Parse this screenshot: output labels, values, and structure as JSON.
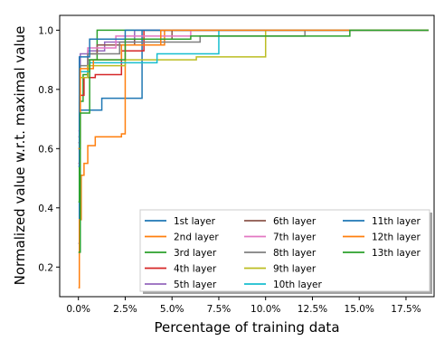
{
  "chart_data": {
    "type": "line",
    "title": "",
    "xlabel": "Percentage of training data",
    "ylabel": "Normalized value w.r.t. maximal value",
    "xlim": [
      -1.0,
      19.0
    ],
    "ylim": [
      0.1,
      1.05
    ],
    "xticks": [
      0.0,
      2.5,
      5.0,
      7.5,
      10.0,
      12.5,
      15.0,
      17.5
    ],
    "xtick_labels": [
      "0.0%",
      "2.5%",
      "5.0%",
      "7.5%",
      "10.0%",
      "12.5%",
      "15.0%",
      "17.5%"
    ],
    "yticks": [
      0.2,
      0.4,
      0.6,
      0.8,
      1.0
    ],
    "ytick_labels": [
      "0.2",
      "0.4",
      "0.6",
      "0.8",
      "1.0"
    ],
    "grid": false,
    "legend": {
      "placement": "lower-right",
      "columns": 3
    },
    "series": [
      {
        "name": "1st layer",
        "color": "#1f77b4",
        "x": [
          0.0,
          0.05,
          0.05,
          0.35,
          0.35,
          1.25,
          1.25,
          3.4,
          3.4,
          18.7
        ],
        "y": [
          0.28,
          0.28,
          0.73,
          0.73,
          0.73,
          0.73,
          0.77,
          0.77,
          1.0,
          1.0
        ]
      },
      {
        "name": "2nd layer",
        "color": "#ff7f0e",
        "x": [
          0.0,
          0.05,
          0.05,
          0.15,
          0.15,
          0.3,
          0.3,
          0.5,
          0.5,
          0.9,
          0.9,
          2.3,
          2.3,
          2.5,
          2.5,
          4.6,
          4.6,
          18.7
        ],
        "y": [
          0.13,
          0.13,
          0.36,
          0.36,
          0.51,
          0.51,
          0.55,
          0.55,
          0.61,
          0.61,
          0.64,
          0.64,
          0.65,
          0.65,
          0.95,
          0.95,
          1.0,
          1.0
        ]
      },
      {
        "name": "3rd layer",
        "color": "#2ca02c",
        "x": [
          0.0,
          0.05,
          0.05,
          0.25,
          0.25,
          0.5,
          0.5,
          1.0,
          1.0,
          18.7
        ],
        "y": [
          0.42,
          0.42,
          0.76,
          0.76,
          0.85,
          0.85,
          0.9,
          0.9,
          1.0,
          1.0
        ]
      },
      {
        "name": "4th layer",
        "color": "#d62728",
        "x": [
          0.0,
          0.05,
          0.05,
          0.3,
          0.3,
          0.9,
          0.9,
          2.3,
          2.3,
          3.5,
          3.5,
          18.7
        ],
        "y": [
          0.55,
          0.55,
          0.78,
          0.78,
          0.84,
          0.84,
          0.85,
          0.85,
          0.93,
          0.93,
          1.0,
          1.0
        ]
      },
      {
        "name": "5th layer",
        "color": "#9467bd",
        "x": [
          0.0,
          0.1,
          0.1,
          0.5,
          0.5,
          1.4,
          1.4,
          3.0,
          3.0,
          18.7
        ],
        "y": [
          0.6,
          0.6,
          0.92,
          0.92,
          0.93,
          0.93,
          0.96,
          0.96,
          1.0,
          1.0
        ]
      },
      {
        "name": "6th layer",
        "color": "#8c564b",
        "x": [
          0.0,
          0.1,
          0.1,
          0.5,
          0.5,
          1.0,
          1.0,
          3.0,
          3.0,
          5.0,
          5.0,
          18.7
        ],
        "y": [
          0.62,
          0.62,
          0.84,
          0.84,
          0.92,
          0.92,
          0.95,
          0.95,
          0.97,
          0.97,
          1.0,
          1.0
        ]
      },
      {
        "name": "7th layer",
        "color": "#e377c2",
        "x": [
          0.0,
          0.1,
          0.1,
          0.5,
          0.5,
          2.0,
          2.0,
          6.0,
          6.0,
          18.7
        ],
        "y": [
          0.66,
          0.66,
          0.86,
          0.86,
          0.94,
          0.94,
          0.98,
          0.98,
          1.0,
          1.0
        ]
      },
      {
        "name": "8th layer",
        "color": "#7f7f7f",
        "x": [
          0.0,
          0.1,
          0.1,
          0.5,
          0.5,
          2.2,
          2.2,
          6.5,
          6.5,
          12.1,
          12.1,
          18.7
        ],
        "y": [
          0.64,
          0.64,
          0.88,
          0.88,
          0.92,
          0.92,
          0.96,
          0.96,
          0.98,
          0.98,
          1.0,
          1.0
        ]
      },
      {
        "name": "9th layer",
        "color": "#bcbd22",
        "x": [
          0.0,
          0.1,
          0.1,
          0.5,
          0.5,
          2.5,
          2.5,
          6.3,
          6.3,
          10.0,
          10.0,
          18.7
        ],
        "y": [
          0.6,
          0.6,
          0.84,
          0.84,
          0.88,
          0.88,
          0.9,
          0.9,
          0.91,
          0.91,
          1.0,
          1.0
        ]
      },
      {
        "name": "10th layer",
        "color": "#17becf",
        "x": [
          0.0,
          0.1,
          0.1,
          0.6,
          0.6,
          2.4,
          2.4,
          4.2,
          4.2,
          7.5,
          7.5,
          18.7
        ],
        "y": [
          0.6,
          0.6,
          0.86,
          0.86,
          0.89,
          0.89,
          0.89,
          0.89,
          0.92,
          0.92,
          1.0,
          1.0
        ]
      },
      {
        "name": "11th layer",
        "color": "#1f77b4",
        "x": [
          0.0,
          0.05,
          0.05,
          0.6,
          0.6,
          2.5,
          2.5,
          18.7
        ],
        "y": [
          0.54,
          0.54,
          0.91,
          0.91,
          0.97,
          0.97,
          1.0,
          1.0
        ]
      },
      {
        "name": "12th layer",
        "color": "#ff7f0e",
        "x": [
          0.0,
          0.1,
          0.1,
          0.8,
          0.8,
          2.3,
          2.3,
          4.4,
          4.4,
          18.7
        ],
        "y": [
          0.6,
          0.6,
          0.87,
          0.87,
          0.9,
          0.9,
          0.95,
          0.95,
          1.0,
          1.0
        ]
      },
      {
        "name": "13th layer",
        "color": "#2ca02c",
        "x": [
          0.0,
          0.1,
          0.1,
          0.6,
          0.6,
          2.5,
          2.5,
          6.0,
          6.0,
          14.5,
          14.5,
          18.7
        ],
        "y": [
          0.25,
          0.25,
          0.72,
          0.72,
          0.9,
          0.9,
          0.97,
          0.97,
          0.98,
          0.98,
          1.0,
          1.0
        ]
      }
    ]
  }
}
